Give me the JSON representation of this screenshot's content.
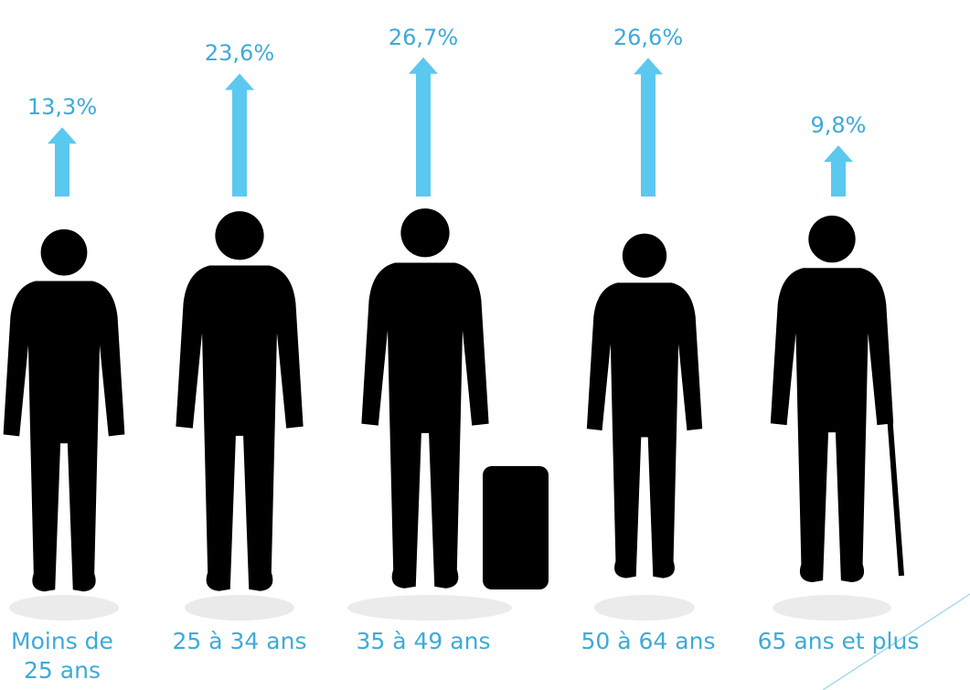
{
  "chart_data": {
    "type": "arrow",
    "categories": [
      "Moins de 25 ans",
      "25 à 34 ans",
      "35 à 49 ans",
      "50 à 64 ans",
      "65 ans et plus"
    ],
    "values": [
      13.3,
      23.6,
      26.7,
      26.6,
      9.8
    ],
    "value_labels": [
      "13,3%",
      "23,6%",
      "26,7%",
      "26,6%",
      "9,8%"
    ],
    "color": "#5bc8f0"
  }
}
